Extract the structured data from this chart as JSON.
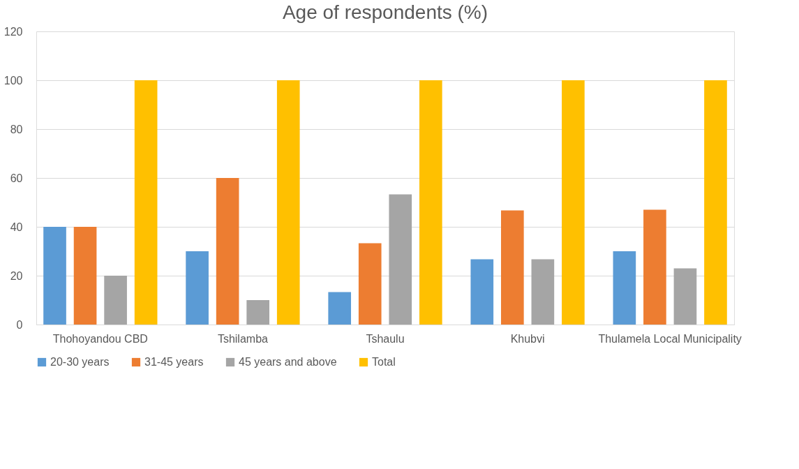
{
  "chart_data": {
    "type": "bar",
    "title": "Age of respondents (%)",
    "categories": [
      "Thohoyandou CBD",
      "Tshilamba",
      "Tshaulu",
      "Khubvi",
      "Thulamela Local Municipality"
    ],
    "series": [
      {
        "name": "20-30 years",
        "color": "#5b9bd5",
        "values": [
          40,
          30,
          13.3,
          26.7,
          30
        ]
      },
      {
        "name": "31-45 years",
        "color": "#ed7d31",
        "values": [
          40,
          60,
          33.3,
          46.7,
          47
        ]
      },
      {
        "name": "45 years and above",
        "color": "#a5a5a5",
        "values": [
          20,
          10,
          53.3,
          26.7,
          23
        ]
      },
      {
        "name": "Total",
        "color": "#ffc000",
        "values": [
          100,
          100,
          100,
          100,
          100
        ]
      }
    ],
    "ylim": [
      0,
      120
    ],
    "yticks": [
      0,
      20,
      40,
      60,
      80,
      100,
      120
    ],
    "grid": "y",
    "legend": "bottom"
  }
}
